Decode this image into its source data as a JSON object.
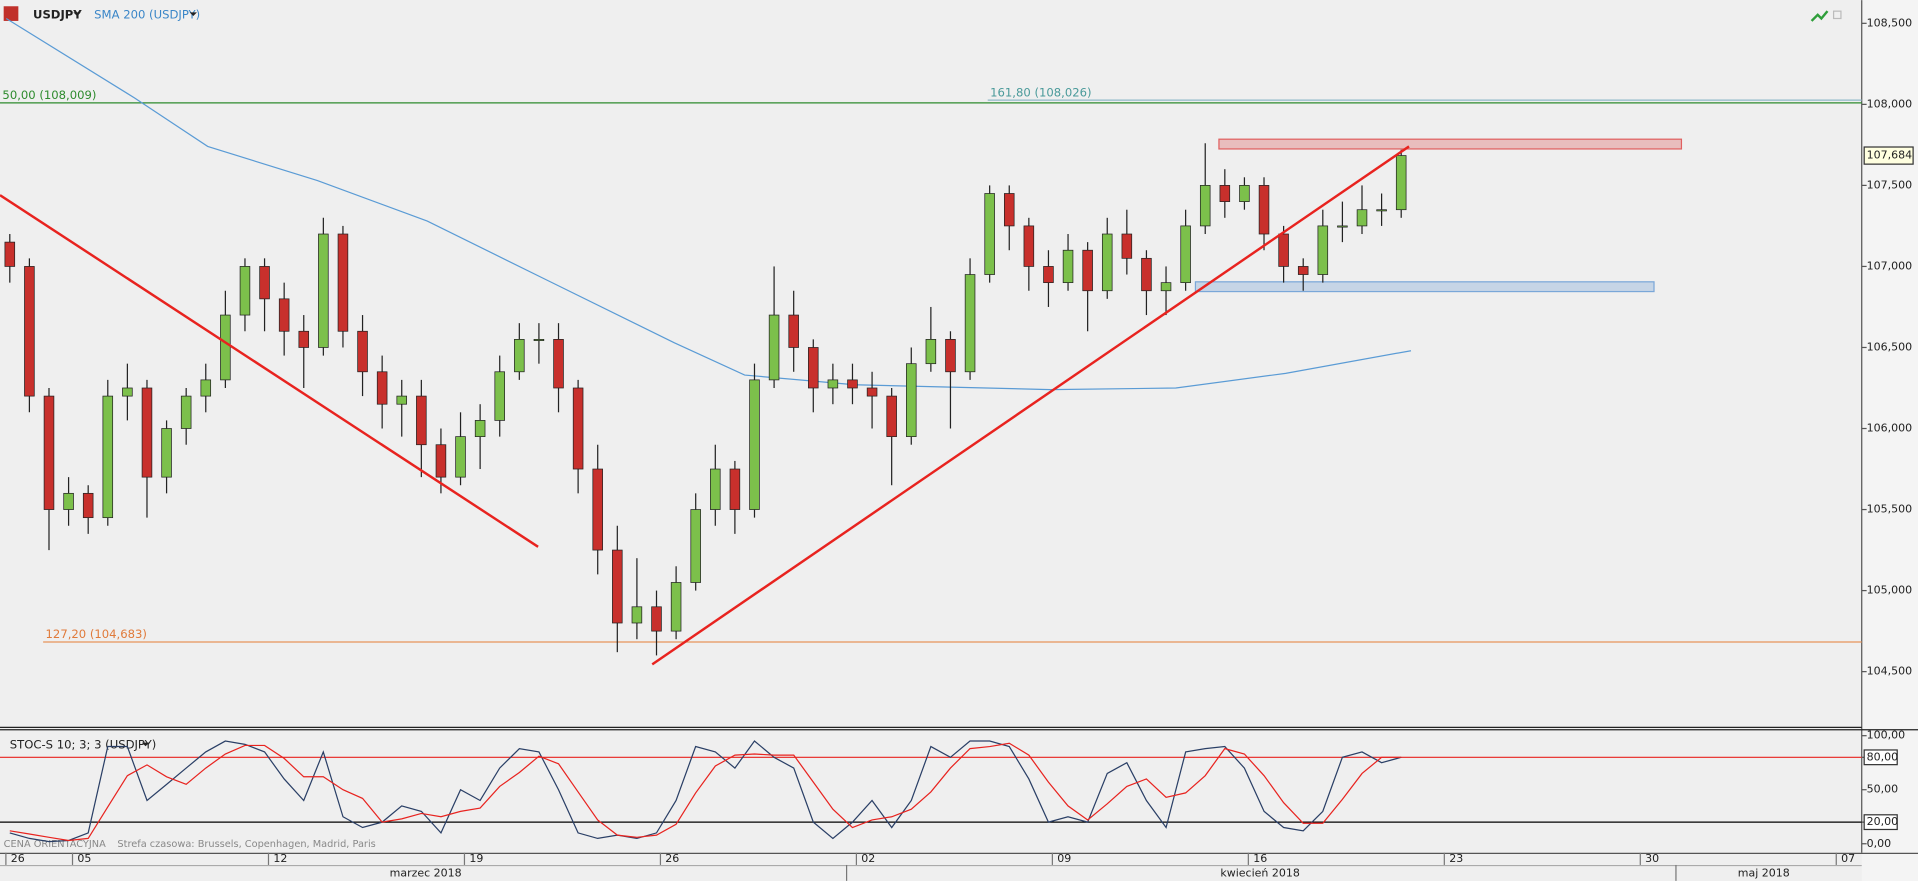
{
  "chart_data": [
    {
      "type": "candlestick",
      "symbol": "USDJPY",
      "xlim": [
        0,
        47.5
      ],
      "ylim": [
        104.16,
        108.643
      ],
      "yticks": [
        {
          "value": 108.5,
          "label": "108,500"
        },
        {
          "value": 108,
          "label": "108,000"
        },
        {
          "value": 107.5,
          "label": "107,500"
        },
        {
          "value": 107,
          "label": "107,000"
        },
        {
          "value": 106.5,
          "label": "106,500"
        },
        {
          "value": 106,
          "label": "106,000"
        },
        {
          "value": 105.5,
          "label": "105,500"
        },
        {
          "value": 105,
          "label": "105,000"
        },
        {
          "value": 104.5,
          "label": "104,500"
        }
      ],
      "xticks": [
        {
          "value": 0.15,
          "label": "26"
        },
        {
          "value": 1.85,
          "label": "05"
        },
        {
          "value": 6.85,
          "label": "12"
        },
        {
          "value": 11.85,
          "label": "19"
        },
        {
          "value": 16.85,
          "label": "26"
        },
        {
          "value": 21.85,
          "label": "02"
        },
        {
          "value": 26.85,
          "label": "09"
        },
        {
          "value": 31.85,
          "label": "16"
        },
        {
          "value": 36.85,
          "label": "23"
        },
        {
          "value": 41.85,
          "label": "30"
        },
        {
          "value": 46.85,
          "label": "07"
        }
      ],
      "months": [
        {
          "value": 10.86,
          "label": "marzec 2018"
        },
        {
          "value": 32.15,
          "label": "kwiecień 2018"
        },
        {
          "value": 45.0,
          "label": "maj 2018"
        }
      ],
      "month_bounds": [
        21.6,
        42.76
      ],
      "colors": {
        "up": "#7cc04b",
        "down": "#c8302c"
      },
      "x": [
        0.25,
        0.75,
        1.25,
        1.75,
        2.25,
        2.75,
        3.25,
        3.75,
        4.25,
        4.75,
        5.25,
        5.75,
        6.25,
        6.75,
        7.25,
        7.75,
        8.25,
        8.75,
        9.25,
        9.75,
        10.25,
        10.75,
        11.25,
        11.75,
        12.25,
        12.75,
        13.25,
        13.75,
        14.25,
        14.75,
        15.25,
        15.75,
        16.25,
        16.75,
        17.25,
        17.75,
        18.25,
        18.75,
        19.25,
        19.75,
        20.25,
        20.75,
        21.25,
        21.75,
        22.25,
        22.75,
        23.25,
        23.75,
        24.25,
        24.75,
        25.25,
        25.75,
        26.25,
        26.75,
        27.25,
        27.75,
        28.25,
        28.75,
        29.25,
        29.75,
        30.25,
        30.75,
        31.25,
        31.75,
        32.25,
        32.75,
        33.25,
        33.75,
        34.25,
        34.75,
        35.25,
        35.75
      ],
      "ohlc": [
        [
          107.15,
          107.2,
          106.9,
          107.0
        ],
        [
          107.0,
          107.05,
          106.1,
          106.2
        ],
        [
          106.2,
          106.25,
          105.25,
          105.5
        ],
        [
          105.5,
          105.7,
          105.4,
          105.6
        ],
        [
          105.6,
          105.65,
          105.35,
          105.45
        ],
        [
          105.45,
          106.3,
          105.4,
          106.2
        ],
        [
          106.2,
          106.4,
          106.05,
          106.25
        ],
        [
          106.25,
          106.3,
          105.45,
          105.7
        ],
        [
          105.7,
          106.05,
          105.6,
          106.0
        ],
        [
          106.0,
          106.25,
          105.9,
          106.2
        ],
        [
          106.2,
          106.4,
          106.1,
          106.3
        ],
        [
          106.3,
          106.85,
          106.25,
          106.7
        ],
        [
          106.7,
          107.05,
          106.6,
          107.0
        ],
        [
          107.0,
          107.05,
          106.6,
          106.8
        ],
        [
          106.8,
          106.9,
          106.45,
          106.6
        ],
        [
          106.6,
          106.7,
          106.25,
          106.5
        ],
        [
          106.5,
          107.3,
          106.45,
          107.2
        ],
        [
          107.2,
          107.25,
          106.5,
          106.6
        ],
        [
          106.6,
          106.7,
          106.2,
          106.35
        ],
        [
          106.35,
          106.45,
          106.0,
          106.15
        ],
        [
          106.15,
          106.3,
          105.95,
          106.2
        ],
        [
          106.2,
          106.3,
          105.7,
          105.9
        ],
        [
          105.9,
          106.0,
          105.6,
          105.7
        ],
        [
          105.7,
          106.1,
          105.65,
          105.95
        ],
        [
          105.95,
          106.15,
          105.75,
          106.05
        ],
        [
          106.05,
          106.45,
          105.95,
          106.35
        ],
        [
          106.35,
          106.65,
          106.3,
          106.55
        ],
        [
          106.55,
          106.65,
          106.4,
          106.55
        ],
        [
          106.55,
          106.65,
          106.1,
          106.25
        ],
        [
          106.25,
          106.3,
          105.6,
          105.75
        ],
        [
          105.75,
          105.9,
          105.1,
          105.25
        ],
        [
          105.25,
          105.4,
          104.62,
          104.8
        ],
        [
          104.8,
          105.2,
          104.7,
          104.9
        ],
        [
          104.9,
          105.0,
          104.6,
          104.75
        ],
        [
          104.75,
          105.15,
          104.7,
          105.05
        ],
        [
          105.05,
          105.6,
          105.0,
          105.5
        ],
        [
          105.5,
          105.9,
          105.4,
          105.75
        ],
        [
          105.75,
          105.8,
          105.35,
          105.5
        ],
        [
          105.5,
          106.4,
          105.45,
          106.3
        ],
        [
          106.3,
          107.0,
          106.25,
          106.7
        ],
        [
          106.7,
          106.85,
          106.35,
          106.5
        ],
        [
          106.5,
          106.55,
          106.1,
          106.25
        ],
        [
          106.25,
          106.4,
          106.15,
          106.3
        ],
        [
          106.3,
          106.4,
          106.15,
          106.25
        ],
        [
          106.25,
          106.35,
          106.0,
          106.2
        ],
        [
          106.2,
          106.25,
          105.65,
          105.95
        ],
        [
          105.95,
          106.5,
          105.9,
          106.4
        ],
        [
          106.4,
          106.75,
          106.35,
          106.55
        ],
        [
          106.55,
          106.6,
          106.0,
          106.35
        ],
        [
          106.35,
          107.05,
          106.3,
          106.95
        ],
        [
          106.95,
          107.5,
          106.9,
          107.45
        ],
        [
          107.45,
          107.5,
          107.1,
          107.25
        ],
        [
          107.25,
          107.3,
          106.85,
          107.0
        ],
        [
          107.0,
          107.1,
          106.75,
          106.9
        ],
        [
          106.9,
          107.2,
          106.85,
          107.1
        ],
        [
          107.1,
          107.15,
          106.6,
          106.85
        ],
        [
          106.85,
          107.3,
          106.8,
          107.2
        ],
        [
          107.2,
          107.35,
          106.95,
          107.05
        ],
        [
          107.05,
          107.1,
          106.7,
          106.85
        ],
        [
          106.85,
          107.0,
          106.7,
          106.9
        ],
        [
          106.9,
          107.35,
          106.85,
          107.25
        ],
        [
          107.25,
          107.76,
          107.2,
          107.5
        ],
        [
          107.5,
          107.6,
          107.3,
          107.4
        ],
        [
          107.4,
          107.55,
          107.35,
          107.5
        ],
        [
          107.5,
          107.55,
          107.1,
          107.2
        ],
        [
          107.2,
          107.25,
          106.9,
          107.0
        ],
        [
          107.0,
          107.05,
          106.85,
          106.95
        ],
        [
          106.95,
          107.35,
          106.9,
          107.25
        ],
        [
          107.25,
          107.4,
          107.15,
          107.25
        ],
        [
          107.25,
          107.5,
          107.2,
          107.35
        ],
        [
          107.35,
          107.45,
          107.25,
          107.35
        ],
        [
          107.35,
          107.72,
          107.3,
          107.684
        ]
      ],
      "overlays": [
        {
          "name": "SMA 200 (USDJPY)",
          "color": "#5a9bd5",
          "x": [
            0.16,
            3.43,
            5.3,
            8.1,
            10.9,
            14.0,
            17.2,
            19.0,
            21.8,
            26.8,
            30.0,
            32.8,
            36.0
          ],
          "values": [
            108.53,
            108.04,
            107.74,
            107.53,
            107.28,
            106.91,
            106.53,
            106.33,
            106.27,
            106.24,
            106.25,
            106.34,
            106.48
          ]
        }
      ],
      "levels": [
        {
          "label": "50,00 (108,009)",
          "value": 108.009,
          "color": "#2e8b2e",
          "label_color": "#2e8b2e",
          "from": 0
        },
        {
          "label": "161,80 (108,026)",
          "value": 108.026,
          "color": "#8fb8c8",
          "label_color": "#4a9a9a",
          "from": 25.2
        },
        {
          "label": "127,20 (104,683)",
          "value": 104.683,
          "color": "#e8955a",
          "label_color": "#e07a3a",
          "from": 1.1
        }
      ],
      "zones": [
        {
          "from": 107.74,
          "to": 107.77,
          "x": [
            31.1,
            42.9
          ],
          "color": "#e06060"
        },
        {
          "from": 106.86,
          "to": 106.89,
          "x": [
            30.5,
            42.2
          ],
          "color": "#7aa7d8"
        }
      ],
      "trendlines": [
        {
          "x": [
            0,
            13.73
          ],
          "values": [
            107.44,
            105.27
          ],
          "color": "#e8231f"
        },
        {
          "x": [
            16.64,
            35.95
          ],
          "values": [
            104.545,
            107.74
          ],
          "color": "#e8231f"
        }
      ],
      "last_price": {
        "value": 107.684,
        "label": "107,684"
      },
      "footer": "CENA ORIENTACYJNA",
      "timezone": "Strefa czasowa: Brussels, Copenhagen, Madrid, Paris"
    },
    {
      "type": "stochastic",
      "title": "STOC-S 10; 3; 3 (USDJPY)",
      "xlim": [
        0,
        47.5
      ],
      "ylim": [
        -8.3,
        104.9
      ],
      "yticks": [
        {
          "value": 100,
          "label": "100,00"
        },
        {
          "value": 80,
          "label": "80,00"
        },
        {
          "value": 50,
          "label": "50,00"
        },
        {
          "value": 20,
          "label": "20,00"
        },
        {
          "value": 0,
          "label": "0,00"
        }
      ],
      "boxed_ticks": [
        80,
        20
      ],
      "levels": [
        {
          "value": 80,
          "color": "#e8231f"
        },
        {
          "value": 20,
          "color": "#000000"
        }
      ],
      "x": [
        0.25,
        0.75,
        1.25,
        1.75,
        2.25,
        2.75,
        3.25,
        3.75,
        4.25,
        4.75,
        5.25,
        5.75,
        6.25,
        6.75,
        7.25,
        7.75,
        8.25,
        8.75,
        9.25,
        9.75,
        10.25,
        10.75,
        11.25,
        11.75,
        12.25,
        12.75,
        13.25,
        13.75,
        14.25,
        14.75,
        15.25,
        15.75,
        16.25,
        16.75,
        17.25,
        17.75,
        18.25,
        18.75,
        19.25,
        19.75,
        20.25,
        20.75,
        21.25,
        21.75,
        22.25,
        22.75,
        23.25,
        23.75,
        24.25,
        24.75,
        25.25,
        25.75,
        26.25,
        26.75,
        27.25,
        27.75,
        28.25,
        28.75,
        29.25,
        29.75,
        30.25,
        30.75,
        31.25,
        31.75,
        32.25,
        32.75,
        33.25,
        33.75,
        34.25,
        34.75,
        35.25,
        35.75
      ],
      "series": [
        {
          "color": "#2a3f66",
          "values": [
            10,
            5,
            2,
            3,
            10,
            90,
            90,
            40,
            55,
            70,
            85,
            95,
            92,
            85,
            60,
            40,
            85,
            25,
            15,
            20,
            35,
            30,
            10,
            50,
            40,
            70,
            88,
            85,
            50,
            10,
            5,
            8,
            5,
            10,
            40,
            90,
            85,
            70,
            95,
            80,
            70,
            20,
            5,
            20,
            40,
            15,
            40,
            90,
            80,
            95,
            95,
            90,
            60,
            20,
            25,
            20,
            65,
            75,
            40,
            15,
            85,
            88,
            90,
            70,
            30,
            15,
            12,
            30,
            80,
            85,
            75,
            80
          ]
        },
        {
          "color": "#e8231f",
          "values": [
            12,
            9,
            6,
            3,
            5,
            34,
            63,
            73,
            62,
            55,
            70,
            83,
            91,
            91,
            79,
            62,
            62,
            50,
            42,
            20,
            23,
            28,
            25,
            30,
            33,
            53,
            66,
            81,
            74,
            48,
            22,
            8,
            6,
            8,
            18,
            47,
            72,
            82,
            83,
            82,
            82,
            57,
            32,
            15,
            22,
            25,
            32,
            48,
            70,
            88,
            90,
            93,
            82,
            57,
            35,
            22,
            37,
            53,
            60,
            43,
            47,
            63,
            88,
            83,
            63,
            38,
            19,
            19,
            41,
            65,
            80,
            80
          ]
        }
      ]
    }
  ]
}
